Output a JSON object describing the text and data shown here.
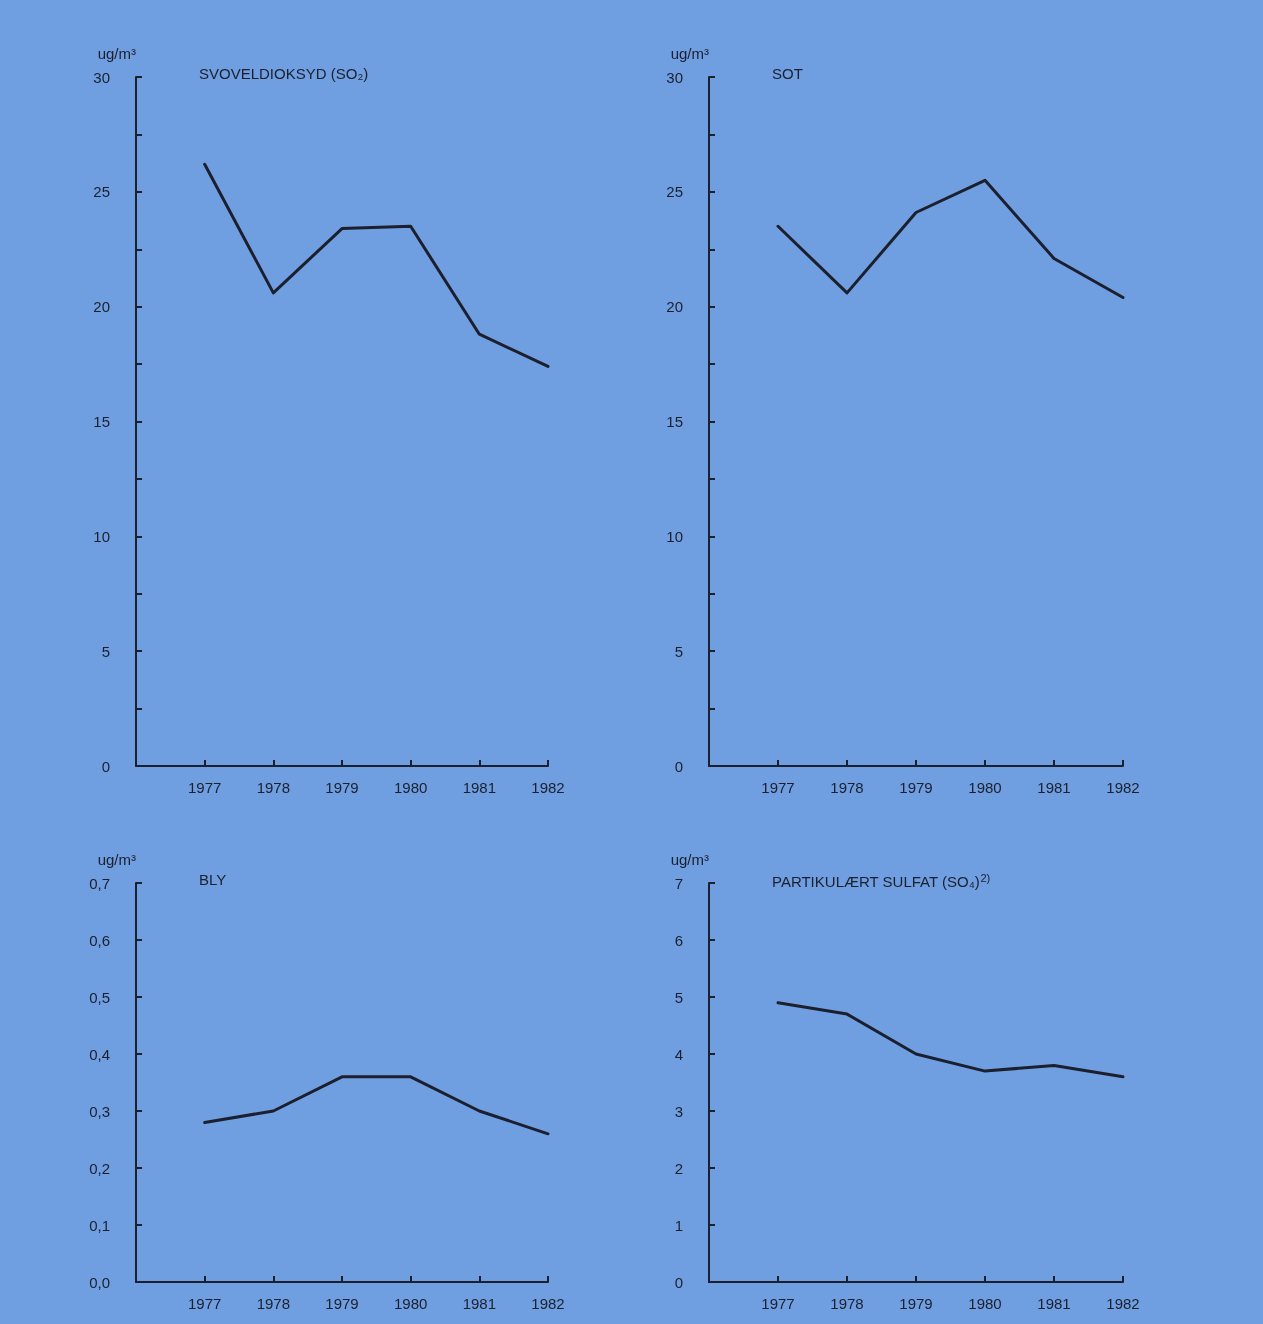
{
  "chart_data": [
    {
      "type": "line",
      "title": "SVOVELDIOKSYD (SO₂)",
      "ylabel": "ug/m³",
      "x": [
        1977,
        1978,
        1979,
        1980,
        1981,
        1982
      ],
      "series": [
        {
          "color": "#1c1f2e",
          "values": [
            26.2,
            20.6,
            23.4,
            23.5,
            18.8,
            17.4
          ]
        }
      ],
      "xlim": [
        1976,
        1982
      ],
      "xticks": [
        1977,
        1978,
        1979,
        1980,
        1981,
        1982
      ],
      "ylim": [
        0,
        30
      ],
      "yticks": [
        0,
        {
          "value": 2.5,
          "label": null
        },
        5,
        {
          "value": 7.5,
          "label": null
        },
        10,
        {
          "value": 12.5,
          "label": null
        },
        15,
        {
          "value": 17.5,
          "label": null
        },
        20,
        {
          "value": 22.5,
          "label": null
        },
        25,
        {
          "value": 27.5,
          "label": null
        },
        30
      ],
      "grid": false,
      "marker": "none",
      "line_style": "solid"
    },
    {
      "type": "line",
      "title": "SOT",
      "ylabel": "ug/m³",
      "x": [
        1977,
        1978,
        1979,
        1980,
        1981,
        1982
      ],
      "series": [
        {
          "color": "#1c1f2e",
          "values": [
            23.5,
            20.6,
            24.1,
            25.5,
            22.1,
            20.4
          ]
        }
      ],
      "xlim": [
        1976,
        1982
      ],
      "xticks": [
        1977,
        1978,
        1979,
        1980,
        1981,
        1982
      ],
      "ylim": [
        0,
        30
      ],
      "yticks": [
        0,
        {
          "value": 2.5,
          "label": null
        },
        5,
        {
          "value": 7.5,
          "label": null
        },
        10,
        {
          "value": 12.5,
          "label": null
        },
        15,
        {
          "value": 17.5,
          "label": null
        },
        20,
        {
          "value": 22.5,
          "label": null
        },
        25,
        {
          "value": 27.5,
          "label": null
        },
        30
      ],
      "grid": false,
      "marker": "none",
      "line_style": "solid"
    },
    {
      "type": "line",
      "title": "BLY",
      "ylabel": "ug/m³",
      "x": [
        1977,
        1978,
        1979,
        1980,
        1981,
        1982
      ],
      "series": [
        {
          "color": "#1c1f2e",
          "values": [
            0.28,
            0.3,
            0.36,
            0.36,
            0.3,
            0.26
          ]
        }
      ],
      "xlim": [
        1976,
        1982
      ],
      "xticks": [
        1977,
        1978,
        1979,
        1980,
        1981,
        1982
      ],
      "ylim": [
        0,
        0.7
      ],
      "yticks": [
        {
          "value": 0,
          "label": "0,0"
        },
        {
          "value": 0.1,
          "label": "0,1"
        },
        {
          "value": 0.2,
          "label": "0,2"
        },
        {
          "value": 0.3,
          "label": "0,3"
        },
        {
          "value": 0.4,
          "label": "0,4"
        },
        {
          "value": 0.5,
          "label": "0,5"
        },
        {
          "value": 0.6,
          "label": "0,6"
        },
        {
          "value": 0.7,
          "label": "0,7"
        }
      ],
      "grid": false,
      "marker": "none",
      "line_style": "solid"
    },
    {
      "type": "line",
      "title": "PARTIKULÆRT SULFAT (SO₄)$^{2)}$",
      "ylabel": "ug/m³",
      "x": [
        1977,
        1978,
        1979,
        1980,
        1981,
        1982
      ],
      "series": [
        {
          "color": "#1c1f2e",
          "values": [
            4.9,
            4.7,
            4.0,
            3.7,
            3.8,
            3.6
          ]
        }
      ],
      "xlim": [
        1976,
        1982
      ],
      "xticks": [
        1977,
        1978,
        1979,
        1980,
        1981,
        1982
      ],
      "ylim": [
        0,
        7
      ],
      "yticks": [
        0,
        1,
        2,
        3,
        4,
        5,
        6,
        7
      ],
      "grid": false,
      "marker": "none",
      "line_style": "solid"
    }
  ]
}
